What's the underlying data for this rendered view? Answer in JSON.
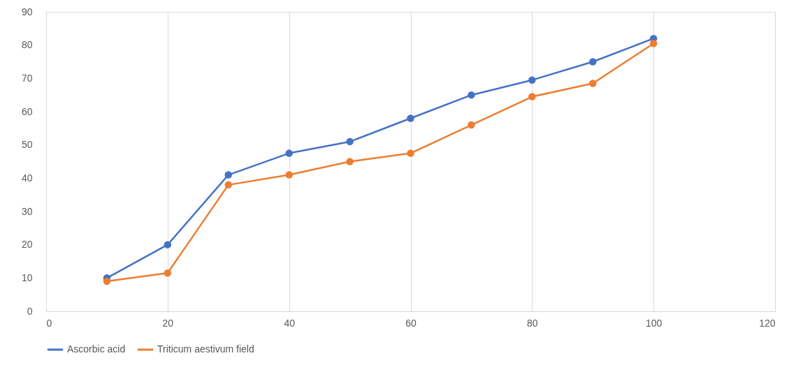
{
  "chart_data": {
    "type": "line",
    "x": [
      10,
      20,
      30,
      40,
      50,
      60,
      70,
      80,
      90,
      100
    ],
    "series": [
      {
        "name": "Ascorbic acid",
        "color": "#4472c4",
        "values": [
          10,
          20,
          41,
          47.5,
          51,
          58,
          65,
          69.5,
          75,
          82
        ]
      },
      {
        "name": "Triticum aestivum field",
        "color": "#ed7d31",
        "values": [
          9,
          11.5,
          38,
          41,
          45,
          47.5,
          56,
          64.5,
          68.5,
          80.5
        ]
      }
    ],
    "xlim": [
      0,
      120
    ],
    "xticks": [
      0,
      20,
      40,
      60,
      80,
      100,
      120
    ],
    "ylim": [
      0,
      90
    ],
    "yticks": [
      0,
      10,
      20,
      30,
      40,
      50,
      60,
      70,
      80,
      90
    ],
    "grid": "x",
    "legend": "bottom",
    "marker": "circle",
    "line_style": "solid"
  }
}
